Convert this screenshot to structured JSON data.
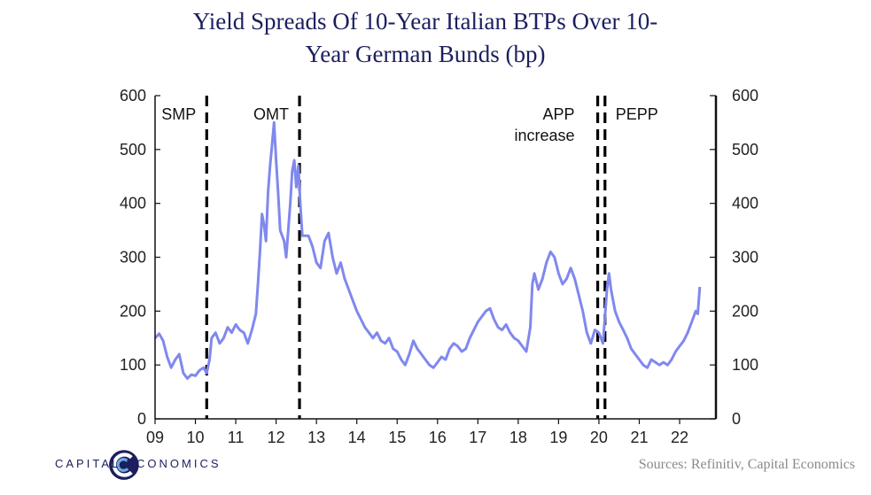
{
  "title": "Yield Spreads Of 10-Year Italian BTPs Over 10-Year German Bunds (bp)",
  "title_lines": [
    "Yield Spreads Of 10-Year Italian BTPs Over 10-",
    "Year German Bunds (bp)"
  ],
  "source": "Sources:  Refinitiv,  Capital Economics",
  "logo_text": "CAPITAL ECONOMICS",
  "colors": {
    "series": "#8088ee",
    "axis": "#111111",
    "title": "#1b1f5e",
    "source": "#8a8a8a"
  },
  "chart_data": {
    "type": "line",
    "xlabel": "",
    "ylabel": "",
    "xlim": [
      2009,
      2022.9
    ],
    "ylim": [
      0,
      600
    ],
    "x_ticks": [
      {
        "value": 2009,
        "label": "09"
      },
      {
        "value": 2010,
        "label": "10"
      },
      {
        "value": 2011,
        "label": "11"
      },
      {
        "value": 2012,
        "label": "12"
      },
      {
        "value": 2013,
        "label": "13"
      },
      {
        "value": 2014,
        "label": "14"
      },
      {
        "value": 2015,
        "label": "15"
      },
      {
        "value": 2016,
        "label": "16"
      },
      {
        "value": 2017,
        "label": "17"
      },
      {
        "value": 2018,
        "label": "18"
      },
      {
        "value": 2019,
        "label": "19"
      },
      {
        "value": 2020,
        "label": "20"
      },
      {
        "value": 2021,
        "label": "21"
      },
      {
        "value": 2022,
        "label": "22"
      }
    ],
    "y_ticks": [
      0,
      100,
      200,
      300,
      400,
      500,
      600
    ],
    "grid": false,
    "dual_y_axis": true,
    "events": [
      {
        "label": "SMP",
        "x": 2010.28
      },
      {
        "label": "OMT",
        "x": 2012.58
      },
      {
        "label": "APP increase",
        "label_lines": [
          "APP",
          "increase"
        ],
        "x": 2019.97
      },
      {
        "label": "PEPP",
        "x": 2020.15
      }
    ],
    "series": [
      {
        "values": [
          [
            2009.0,
            150
          ],
          [
            2009.1,
            158
          ],
          [
            2009.2,
            145
          ],
          [
            2009.3,
            115
          ],
          [
            2009.4,
            95
          ],
          [
            2009.5,
            110
          ],
          [
            2009.6,
            120
          ],
          [
            2009.7,
            85
          ],
          [
            2009.8,
            75
          ],
          [
            2009.9,
            82
          ],
          [
            2010.0,
            80
          ],
          [
            2010.1,
            90
          ],
          [
            2010.2,
            95
          ],
          [
            2010.28,
            85
          ],
          [
            2010.35,
            110
          ],
          [
            2010.4,
            150
          ],
          [
            2010.5,
            160
          ],
          [
            2010.6,
            140
          ],
          [
            2010.7,
            150
          ],
          [
            2010.8,
            170
          ],
          [
            2010.9,
            160
          ],
          [
            2011.0,
            175
          ],
          [
            2011.1,
            165
          ],
          [
            2011.2,
            160
          ],
          [
            2011.3,
            140
          ],
          [
            2011.4,
            165
          ],
          [
            2011.5,
            195
          ],
          [
            2011.55,
            250
          ],
          [
            2011.6,
            310
          ],
          [
            2011.65,
            380
          ],
          [
            2011.7,
            360
          ],
          [
            2011.75,
            330
          ],
          [
            2011.8,
            420
          ],
          [
            2011.85,
            470
          ],
          [
            2011.9,
            510
          ],
          [
            2011.95,
            550
          ],
          [
            2012.0,
            480
          ],
          [
            2012.05,
            420
          ],
          [
            2012.1,
            350
          ],
          [
            2012.2,
            330
          ],
          [
            2012.25,
            300
          ],
          [
            2012.3,
            350
          ],
          [
            2012.35,
            400
          ],
          [
            2012.4,
            460
          ],
          [
            2012.45,
            480
          ],
          [
            2012.5,
            430
          ],
          [
            2012.55,
            470
          ],
          [
            2012.6,
            400
          ],
          [
            2012.65,
            340
          ],
          [
            2012.8,
            340
          ],
          [
            2012.9,
            320
          ],
          [
            2013.0,
            290
          ],
          [
            2013.1,
            280
          ],
          [
            2013.2,
            330
          ],
          [
            2013.3,
            345
          ],
          [
            2013.4,
            300
          ],
          [
            2013.5,
            270
          ],
          [
            2013.6,
            290
          ],
          [
            2013.7,
            260
          ],
          [
            2013.8,
            240
          ],
          [
            2013.9,
            220
          ],
          [
            2014.0,
            200
          ],
          [
            2014.1,
            185
          ],
          [
            2014.2,
            170
          ],
          [
            2014.3,
            160
          ],
          [
            2014.4,
            150
          ],
          [
            2014.5,
            160
          ],
          [
            2014.6,
            145
          ],
          [
            2014.7,
            140
          ],
          [
            2014.8,
            150
          ],
          [
            2014.9,
            130
          ],
          [
            2015.0,
            125
          ],
          [
            2015.1,
            110
          ],
          [
            2015.2,
            100
          ],
          [
            2015.3,
            120
          ],
          [
            2015.4,
            145
          ],
          [
            2015.5,
            130
          ],
          [
            2015.6,
            120
          ],
          [
            2015.7,
            110
          ],
          [
            2015.8,
            100
          ],
          [
            2015.9,
            95
          ],
          [
            2016.0,
            105
          ],
          [
            2016.1,
            115
          ],
          [
            2016.2,
            110
          ],
          [
            2016.3,
            130
          ],
          [
            2016.4,
            140
          ],
          [
            2016.5,
            135
          ],
          [
            2016.6,
            125
          ],
          [
            2016.7,
            130
          ],
          [
            2016.8,
            150
          ],
          [
            2016.9,
            165
          ],
          [
            2017.0,
            180
          ],
          [
            2017.1,
            190
          ],
          [
            2017.2,
            200
          ],
          [
            2017.3,
            205
          ],
          [
            2017.4,
            185
          ],
          [
            2017.5,
            170
          ],
          [
            2017.6,
            165
          ],
          [
            2017.7,
            175
          ],
          [
            2017.8,
            160
          ],
          [
            2017.9,
            150
          ],
          [
            2018.0,
            145
          ],
          [
            2018.1,
            135
          ],
          [
            2018.2,
            125
          ],
          [
            2018.3,
            170
          ],
          [
            2018.35,
            250
          ],
          [
            2018.4,
            270
          ],
          [
            2018.5,
            240
          ],
          [
            2018.6,
            260
          ],
          [
            2018.7,
            290
          ],
          [
            2018.8,
            310
          ],
          [
            2018.9,
            300
          ],
          [
            2019.0,
            270
          ],
          [
            2019.1,
            250
          ],
          [
            2019.2,
            260
          ],
          [
            2019.3,
            280
          ],
          [
            2019.4,
            260
          ],
          [
            2019.5,
            230
          ],
          [
            2019.6,
            200
          ],
          [
            2019.7,
            160
          ],
          [
            2019.8,
            140
          ],
          [
            2019.9,
            165
          ],
          [
            2020.0,
            160
          ],
          [
            2020.1,
            140
          ],
          [
            2020.2,
            240
          ],
          [
            2020.25,
            270
          ],
          [
            2020.3,
            240
          ],
          [
            2020.4,
            200
          ],
          [
            2020.5,
            180
          ],
          [
            2020.6,
            165
          ],
          [
            2020.7,
            150
          ],
          [
            2020.8,
            130
          ],
          [
            2020.9,
            120
          ],
          [
            2021.0,
            110
          ],
          [
            2021.1,
            100
          ],
          [
            2021.2,
            95
          ],
          [
            2021.3,
            110
          ],
          [
            2021.4,
            105
          ],
          [
            2021.5,
            100
          ],
          [
            2021.6,
            105
          ],
          [
            2021.7,
            100
          ],
          [
            2021.8,
            110
          ],
          [
            2021.9,
            125
          ],
          [
            2022.0,
            135
          ],
          [
            2022.1,
            145
          ],
          [
            2022.2,
            160
          ],
          [
            2022.3,
            180
          ],
          [
            2022.4,
            200
          ],
          [
            2022.45,
            195
          ],
          [
            2022.5,
            245
          ]
        ]
      }
    ]
  }
}
